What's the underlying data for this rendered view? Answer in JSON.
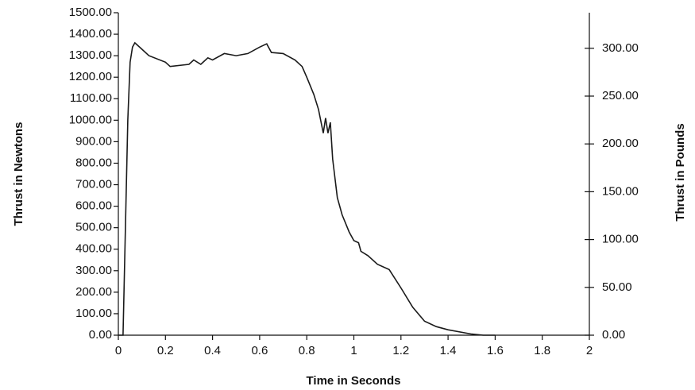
{
  "chart_data": {
    "type": "line",
    "xlabel": "Time in Seconds",
    "ylabel": "Thrust in Newtons",
    "y2label": "Thrust in Pounds",
    "color": "#1a1a1a",
    "x": [
      0,
      0.02,
      0.03,
      0.04,
      0.05,
      0.06,
      0.07,
      0.1,
      0.13,
      0.2,
      0.22,
      0.3,
      0.32,
      0.35,
      0.38,
      0.4,
      0.45,
      0.5,
      0.55,
      0.6,
      0.63,
      0.65,
      0.7,
      0.75,
      0.78,
      0.8,
      0.83,
      0.85,
      0.87,
      0.88,
      0.89,
      0.9,
      0.91,
      0.93,
      0.95,
      0.98,
      1.0,
      1.02,
      1.03,
      1.06,
      1.1,
      1.15,
      1.2,
      1.25,
      1.3,
      1.35,
      1.4,
      1.5,
      1.55,
      1.6
    ],
    "values": [
      0,
      0,
      500,
      1000,
      1270,
      1340,
      1360,
      1330,
      1300,
      1270,
      1250,
      1260,
      1280,
      1260,
      1290,
      1280,
      1310,
      1300,
      1310,
      1340,
      1355,
      1315,
      1310,
      1280,
      1250,
      1200,
      1120,
      1050,
      940,
      1010,
      940,
      990,
      820,
      640,
      560,
      480,
      440,
      430,
      390,
      370,
      330,
      305,
      220,
      130,
      65,
      40,
      25,
      5,
      0,
      0
    ],
    "xlim": [
      0,
      2
    ],
    "xticks": [
      0,
      0.2,
      0.4,
      0.6,
      0.8,
      1,
      1.2,
      1.4,
      1.6,
      1.8,
      2
    ],
    "ylim": [
      0,
      1500
    ],
    "yticks": [
      {
        "value": 0,
        "label": "0.00"
      },
      {
        "value": 100,
        "label": "100.00"
      },
      {
        "value": 200,
        "label": "200.00"
      },
      {
        "value": 300,
        "label": "300.00"
      },
      {
        "value": 400,
        "label": "400.00"
      },
      {
        "value": 500,
        "label": "500.00"
      },
      {
        "value": 600,
        "label": "600.00"
      },
      {
        "value": 700,
        "label": "700.00"
      },
      {
        "value": 800,
        "label": "800.00"
      },
      {
        "value": 900,
        "label": "900.00"
      },
      {
        "value": 1000,
        "label": "1000.00"
      },
      {
        "value": 1100,
        "label": "1100.00"
      },
      {
        "value": 1200,
        "label": "1200.00"
      },
      {
        "value": 1300,
        "label": "1300.00"
      },
      {
        "value": 1400,
        "label": "1400.00"
      },
      {
        "value": 1500,
        "label": "1500.00"
      }
    ],
    "y2lim": [
      0,
      337.2
    ],
    "y2ticks": [
      {
        "value": 0,
        "label": "0.00"
      },
      {
        "value": 50,
        "label": "50.00"
      },
      {
        "value": 100,
        "label": "100.00"
      },
      {
        "value": 150,
        "label": "150.00"
      },
      {
        "value": 200,
        "label": "200.00"
      },
      {
        "value": 250,
        "label": "250.00"
      },
      {
        "value": 300,
        "label": "300.00"
      }
    ]
  }
}
